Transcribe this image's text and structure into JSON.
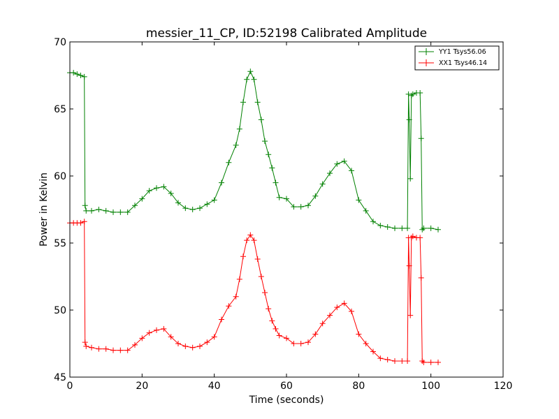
{
  "chart_data": {
    "type": "line",
    "title": "messier_11_CP, ID:52198 Calibrated Amplitude",
    "xlabel": "Time (seconds)",
    "ylabel": "Power in Kelvin",
    "xlim": [
      0,
      120
    ],
    "ylim": [
      45,
      70
    ],
    "xticks": [
      0,
      20,
      40,
      60,
      80,
      100,
      120
    ],
    "yticks": [
      45,
      50,
      55,
      60,
      65,
      70
    ],
    "grid": false,
    "legend_position": "top-right",
    "marker": "+",
    "series": [
      {
        "name": "YY1 Tsys56.06",
        "color": "#008000",
        "points": [
          [
            0,
            67.7
          ],
          [
            1,
            67.7
          ],
          [
            2,
            67.6
          ],
          [
            3,
            67.5
          ],
          [
            4,
            67.4
          ],
          [
            4.2,
            57.8
          ],
          [
            4.5,
            57.4
          ],
          [
            6,
            57.4
          ],
          [
            8,
            57.5
          ],
          [
            10,
            57.4
          ],
          [
            12,
            57.3
          ],
          [
            14,
            57.3
          ],
          [
            16,
            57.3
          ],
          [
            18,
            57.8
          ],
          [
            20,
            58.3
          ],
          [
            22,
            58.9
          ],
          [
            24,
            59.1
          ],
          [
            26,
            59.2
          ],
          [
            28,
            58.7
          ],
          [
            30,
            58.0
          ],
          [
            32,
            57.6
          ],
          [
            34,
            57.5
          ],
          [
            36,
            57.6
          ],
          [
            38,
            57.9
          ],
          [
            40,
            58.2
          ],
          [
            42,
            59.5
          ],
          [
            44,
            61.0
          ],
          [
            46,
            62.3
          ],
          [
            47,
            63.5
          ],
          [
            48,
            65.5
          ],
          [
            49,
            67.2
          ],
          [
            50,
            67.8
          ],
          [
            51,
            67.2
          ],
          [
            52,
            65.5
          ],
          [
            53,
            64.2
          ],
          [
            54,
            62.6
          ],
          [
            55,
            61.6
          ],
          [
            56,
            60.6
          ],
          [
            57,
            59.5
          ],
          [
            58,
            58.4
          ],
          [
            60,
            58.3
          ],
          [
            62,
            57.7
          ],
          [
            64,
            57.7
          ],
          [
            66,
            57.8
          ],
          [
            68,
            58.5
          ],
          [
            70,
            59.4
          ],
          [
            72,
            60.2
          ],
          [
            74,
            60.9
          ],
          [
            76,
            61.1
          ],
          [
            78,
            60.4
          ],
          [
            80,
            58.2
          ],
          [
            82,
            57.4
          ],
          [
            84,
            56.6
          ],
          [
            86,
            56.3
          ],
          [
            88,
            56.2
          ],
          [
            90,
            56.1
          ],
          [
            92,
            56.1
          ],
          [
            93.5,
            56.1
          ],
          [
            93.8,
            66.1
          ],
          [
            94,
            64.2
          ],
          [
            94.3,
            59.8
          ],
          [
            94.6,
            66.0
          ],
          [
            95,
            66.1
          ],
          [
            96,
            66.2
          ],
          [
            97,
            66.2
          ],
          [
            97.3,
            62.8
          ],
          [
            97.6,
            56.0
          ],
          [
            98,
            56.1
          ],
          [
            100,
            56.1
          ],
          [
            102,
            56.0
          ]
        ]
      },
      {
        "name": "XX1 Tsys46.14",
        "color": "#ff0000",
        "points": [
          [
            0,
            56.5
          ],
          [
            1,
            56.5
          ],
          [
            2,
            56.5
          ],
          [
            3,
            56.5
          ],
          [
            4,
            56.6
          ],
          [
            4.2,
            47.6
          ],
          [
            4.5,
            47.3
          ],
          [
            6,
            47.2
          ],
          [
            8,
            47.1
          ],
          [
            10,
            47.1
          ],
          [
            12,
            47.0
          ],
          [
            14,
            47.0
          ],
          [
            16,
            47.0
          ],
          [
            18,
            47.4
          ],
          [
            20,
            47.9
          ],
          [
            22,
            48.3
          ],
          [
            24,
            48.5
          ],
          [
            26,
            48.6
          ],
          [
            28,
            48.0
          ],
          [
            30,
            47.5
          ],
          [
            32,
            47.3
          ],
          [
            34,
            47.2
          ],
          [
            36,
            47.3
          ],
          [
            38,
            47.6
          ],
          [
            40,
            48.0
          ],
          [
            42,
            49.3
          ],
          [
            44,
            50.3
          ],
          [
            46,
            51.0
          ],
          [
            47,
            52.3
          ],
          [
            48,
            54.0
          ],
          [
            49,
            55.2
          ],
          [
            50,
            55.6
          ],
          [
            51,
            55.2
          ],
          [
            52,
            53.8
          ],
          [
            53,
            52.5
          ],
          [
            54,
            51.3
          ],
          [
            55,
            50.1
          ],
          [
            56,
            49.2
          ],
          [
            57,
            48.6
          ],
          [
            58,
            48.1
          ],
          [
            60,
            47.9
          ],
          [
            62,
            47.5
          ],
          [
            64,
            47.5
          ],
          [
            66,
            47.6
          ],
          [
            68,
            48.2
          ],
          [
            70,
            49.0
          ],
          [
            72,
            49.6
          ],
          [
            74,
            50.2
          ],
          [
            76,
            50.5
          ],
          [
            78,
            49.9
          ],
          [
            80,
            48.2
          ],
          [
            82,
            47.5
          ],
          [
            84,
            46.9
          ],
          [
            86,
            46.4
          ],
          [
            88,
            46.3
          ],
          [
            90,
            46.2
          ],
          [
            92,
            46.2
          ],
          [
            93.5,
            46.2
          ],
          [
            93.8,
            55.4
          ],
          [
            94,
            53.3
          ],
          [
            94.3,
            49.6
          ],
          [
            94.6,
            55.4
          ],
          [
            95,
            55.5
          ],
          [
            96,
            55.4
          ],
          [
            97,
            55.4
          ],
          [
            97.3,
            52.4
          ],
          [
            97.6,
            46.2
          ],
          [
            98,
            46.1
          ],
          [
            100,
            46.1
          ],
          [
            102,
            46.1
          ]
        ]
      }
    ]
  }
}
